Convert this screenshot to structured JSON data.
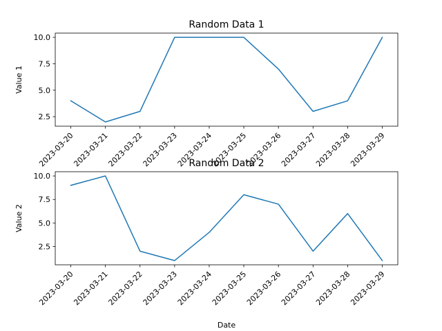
{
  "chart_data": [
    {
      "type": "line",
      "title": "Random Data 1",
      "xlabel": "",
      "ylabel": "Value 1",
      "x": [
        "2023-03-20",
        "2023-03-21",
        "2023-03-22",
        "2023-03-23",
        "2023-03-24",
        "2023-03-25",
        "2023-03-26",
        "2023-03-27",
        "2023-03-28",
        "2023-03-29"
      ],
      "values": [
        4,
        2,
        3,
        10,
        10,
        10,
        7,
        3,
        4,
        10
      ],
      "ylim": [
        1.6,
        10.4
      ],
      "yticks": [
        "2.5",
        "5.0",
        "7.5",
        "10.0"
      ],
      "color": "#1f77b4",
      "grid": false
    },
    {
      "type": "line",
      "title": "Random Data 2",
      "xlabel": "Date",
      "ylabel": "Value 2",
      "x": [
        "2023-03-20",
        "2023-03-21",
        "2023-03-22",
        "2023-03-23",
        "2023-03-24",
        "2023-03-25",
        "2023-03-26",
        "2023-03-27",
        "2023-03-28",
        "2023-03-29"
      ],
      "values": [
        9,
        10,
        2,
        1,
        4,
        8,
        7,
        2,
        6,
        1
      ],
      "ylim": [
        0.55,
        10.45
      ],
      "yticks": [
        "2.5",
        "5.0",
        "7.5",
        "10.0"
      ],
      "color": "#1f77b4",
      "grid": false
    }
  ]
}
